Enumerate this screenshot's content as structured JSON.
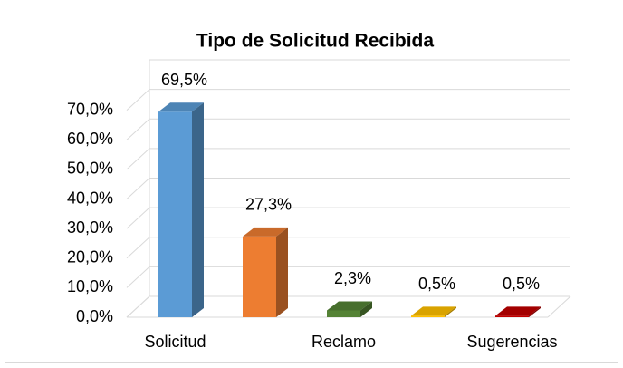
{
  "chart_data": {
    "type": "bar3d",
    "title": "Tipo de Solicitud Recibida",
    "categories": [
      "Solicitud",
      null,
      "Reclamo",
      null,
      "Sugerencias"
    ],
    "values": [
      69.5,
      27.3,
      2.3,
      0.5,
      0.5
    ],
    "value_labels": [
      "69,5%",
      "27,3%",
      "2,3%",
      "0,5%",
      "0,5%"
    ],
    "colors": [
      "#5b9bd5",
      "#ed7d31",
      "#548235",
      "#ffc000",
      "#c00000"
    ],
    "ylim": [
      0,
      80
    ],
    "yticks": [
      {
        "value": 0,
        "label": "0,0%"
      },
      {
        "value": 10,
        "label": "10,0%"
      },
      {
        "value": 20,
        "label": "20,0%"
      },
      {
        "value": 30,
        "label": "30,0%"
      },
      {
        "value": 40,
        "label": "40,0%"
      },
      {
        "value": 50,
        "label": "50,0%"
      },
      {
        "value": 60,
        "label": "60,0%"
      },
      {
        "value": 70,
        "label": "70,0%"
      }
    ],
    "grid": true
  }
}
